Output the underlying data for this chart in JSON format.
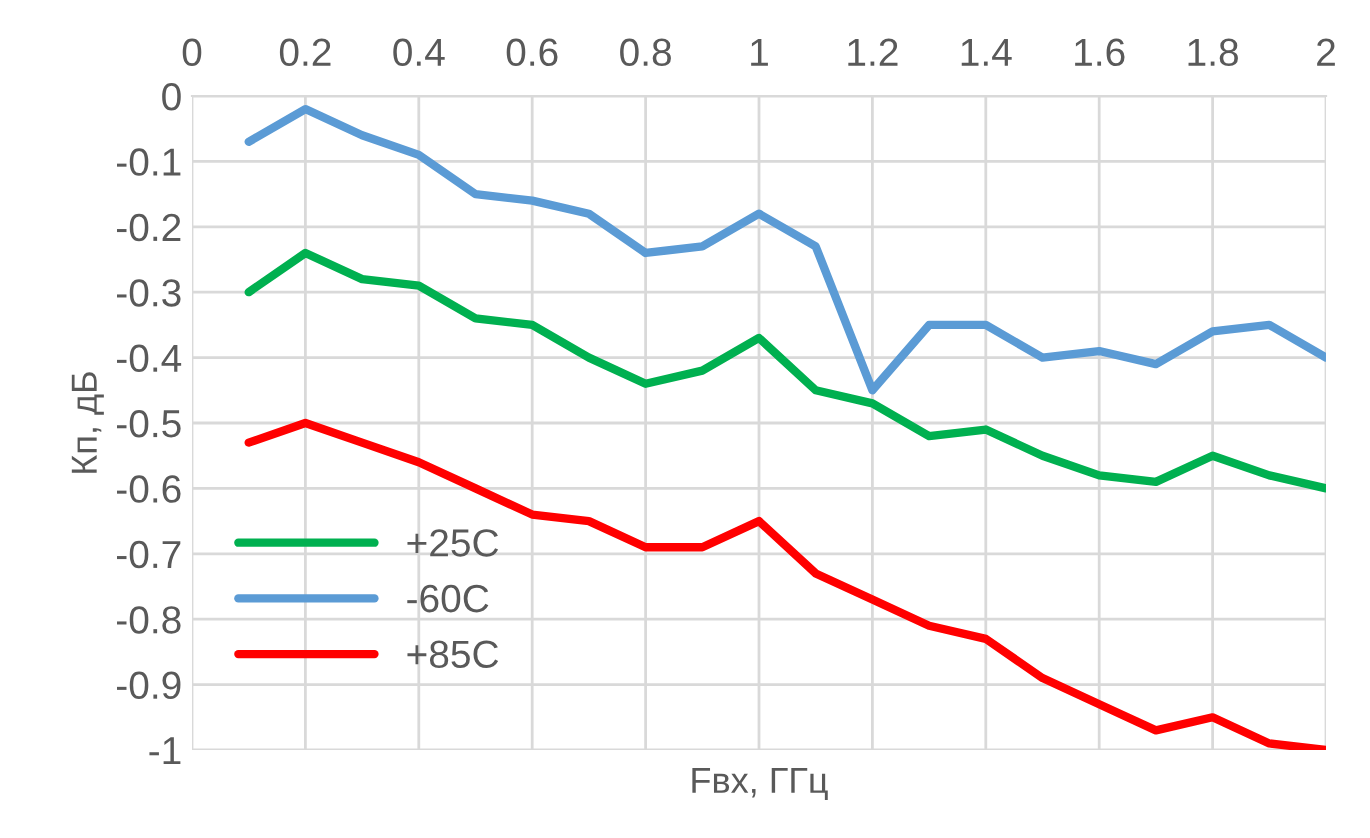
{
  "chart_data": {
    "type": "line",
    "xlabel": "Fвх, ГГц",
    "ylabel": "Кп, дБ",
    "x": [
      0.1,
      0.2,
      0.3,
      0.4,
      0.5,
      0.6,
      0.7,
      0.8,
      0.9,
      1.0,
      1.1,
      1.2,
      1.3,
      1.4,
      1.5,
      1.6,
      1.7,
      1.8,
      1.9,
      2.0
    ],
    "series": [
      {
        "name": "+25С",
        "color": "#00b050",
        "values": [
          -0.3,
          -0.24,
          -0.28,
          -0.29,
          -0.34,
          -0.35,
          -0.4,
          -0.44,
          -0.42,
          -0.37,
          -0.45,
          -0.47,
          -0.52,
          -0.51,
          -0.55,
          -0.58,
          -0.59,
          -0.55,
          -0.58,
          -0.6
        ]
      },
      {
        "name": "-60С",
        "color": "#5b9bd5",
        "values": [
          -0.07,
          -0.02,
          -0.06,
          -0.09,
          -0.15,
          -0.16,
          -0.18,
          -0.24,
          -0.23,
          -0.18,
          -0.23,
          -0.45,
          -0.35,
          -0.35,
          -0.4,
          -0.39,
          -0.41,
          -0.36,
          -0.35,
          -0.4
        ]
      },
      {
        "name": "+85С",
        "color": "#ff0000",
        "values": [
          -0.53,
          -0.5,
          -0.53,
          -0.56,
          -0.6,
          -0.64,
          -0.65,
          -0.69,
          -0.69,
          -0.65,
          -0.73,
          -0.77,
          -0.81,
          -0.83,
          -0.89,
          -0.93,
          -0.97,
          -0.95,
          -0.99,
          -1.0
        ]
      }
    ],
    "xlim": [
      0,
      2
    ],
    "xticks": [
      0,
      0.2,
      0.4,
      0.6,
      0.8,
      1,
      1.2,
      1.4,
      1.6,
      1.8,
      2
    ],
    "ylim": [
      -1,
      0
    ],
    "yticks": [
      0,
      -0.1,
      -0.2,
      -0.3,
      -0.4,
      -0.5,
      -0.6,
      -0.7,
      -0.8,
      -0.9,
      -1
    ],
    "grid": true,
    "legend": "bottom left",
    "marker": "none",
    "line_style": "solid"
  }
}
